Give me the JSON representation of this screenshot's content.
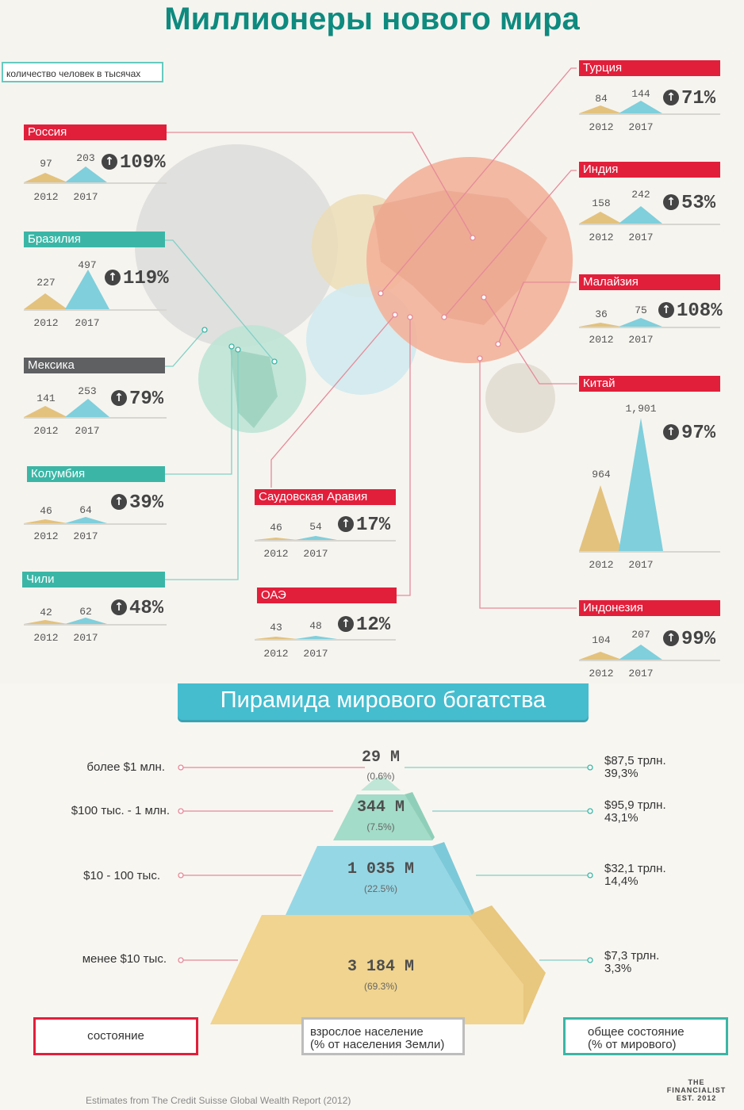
{
  "title": "Миллионеры нового мира",
  "legend_label": "количество человек в тысячах",
  "countries": [
    {
      "name": "Россия",
      "v2012": "97",
      "v2017": "203",
      "growth": "109%"
    },
    {
      "name": "Бразилия",
      "v2012": "227",
      "v2017": "497",
      "growth": "119%"
    },
    {
      "name": "Мексика",
      "v2012": "141",
      "v2017": "253",
      "growth": "79%"
    },
    {
      "name": "Колумбия",
      "v2012": "46",
      "v2017": "64",
      "growth": "39%"
    },
    {
      "name": "Чили",
      "v2012": "42",
      "v2017": "62",
      "growth": "48%"
    },
    {
      "name": "Саудовская Аравия",
      "v2012": "46",
      "v2017": "54",
      "growth": "17%"
    },
    {
      "name": "ОАЭ",
      "v2012": "43",
      "v2017": "48",
      "growth": "12%"
    },
    {
      "name": "Турция",
      "v2012": "84",
      "v2017": "144",
      "growth": "71%"
    },
    {
      "name": "Индия",
      "v2012": "158",
      "v2017": "242",
      "growth": "53%"
    },
    {
      "name": "Малайзия",
      "v2012": "36",
      "v2017": "75",
      "growth": "108%"
    },
    {
      "name": "Китай",
      "v2012": "964",
      "v2017": "1,901",
      "growth": "97%"
    },
    {
      "name": "Индонезия",
      "v2012": "104",
      "v2017": "207",
      "growth": "99%"
    }
  ],
  "year_a": "2012",
  "year_b": "2017",
  "colors": {
    "red": "#e21f3b",
    "teal": "#3bb6a6",
    "gray": "#5f6062",
    "gold": "#e3c27e",
    "blue": "#7fcfdc"
  },
  "pyramid": {
    "title": "Пирамида мирового богатства",
    "tiers": [
      {
        "wealth": "более $1 млн.",
        "adults": "29 M",
        "adults_pct": "(0.6%)",
        "total": "$87,5 трлн.",
        "total_pct": "39,3%"
      },
      {
        "wealth": "$100 тыс. - 1 млн.",
        "adults": "344 M",
        "adults_pct": "(7.5%)",
        "total": "$95,9 трлн.",
        "total_pct": "43,1%"
      },
      {
        "wealth": "$10 - 100 тыс.",
        "adults": "1 035 M",
        "adults_pct": "(22.5%)",
        "total": "$32,1 трлн.",
        "total_pct": "14,4%"
      },
      {
        "wealth": "менее $10 тыс.",
        "adults": "3 184 M",
        "adults_pct": "(69.3%)",
        "total": "$7,3 трлн.",
        "total_pct": "3,3%"
      }
    ],
    "key": {
      "wealth": "состояние",
      "adults_line1": "взрослое население",
      "adults_line2": "(% от населения Земли)",
      "total_line1": "общее состояние",
      "total_line2": "(% от мирового)"
    }
  },
  "footer": "Estimates from The Credit Suisse Global Wealth Report (2012)",
  "logo": {
    "line1": "THE",
    "line2": "FINANCIALIST",
    "line3": "EST. 2012"
  }
}
